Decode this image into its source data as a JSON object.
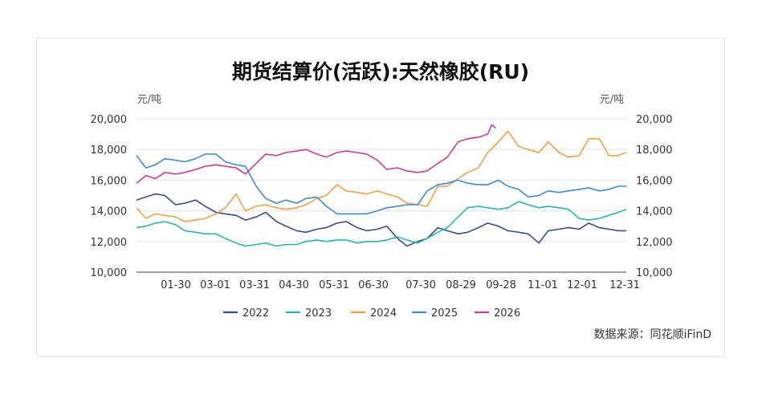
{
  "chart_data": {
    "type": "line",
    "title": "期货结算价(活跃):天然橡胶(RU)",
    "y_unit_left": "元/吨",
    "y_unit_right": "元/吨",
    "ylim": [
      10000,
      20000
    ],
    "yticks": [
      "10,000",
      "12,000",
      "14,000",
      "16,000",
      "18,000",
      "20,000"
    ],
    "xticks": [
      "01-30",
      "03-01",
      "03-31",
      "04-30",
      "05-31",
      "06-30",
      "07-30",
      "08-29",
      "09-28",
      "11-01",
      "12-01",
      "12-31"
    ],
    "grid": true,
    "legend_position": "bottom",
    "series": [
      {
        "name": "2022",
        "color": "#3d4a8f",
        "points": [
          [
            1,
            14700
          ],
          [
            8,
            14900
          ],
          [
            15,
            15100
          ],
          [
            22,
            15000
          ],
          [
            30,
            14400
          ],
          [
            37,
            14500
          ],
          [
            45,
            14700
          ],
          [
            52,
            14300
          ],
          [
            60,
            13900
          ],
          [
            67,
            13800
          ],
          [
            75,
            13700
          ],
          [
            82,
            13400
          ],
          [
            90,
            13600
          ],
          [
            97,
            13900
          ],
          [
            105,
            13300
          ],
          [
            112,
            13000
          ],
          [
            120,
            12700
          ],
          [
            127,
            12600
          ],
          [
            135,
            12800
          ],
          [
            142,
            12900
          ],
          [
            150,
            13200
          ],
          [
            157,
            13300
          ],
          [
            165,
            12900
          ],
          [
            172,
            12700
          ],
          [
            180,
            12800
          ],
          [
            187,
            13000
          ],
          [
            195,
            12200
          ],
          [
            202,
            11700
          ],
          [
            210,
            12000
          ],
          [
            217,
            12200
          ],
          [
            225,
            12900
          ],
          [
            232,
            12700
          ],
          [
            240,
            12500
          ],
          [
            247,
            12600
          ],
          [
            255,
            12900
          ],
          [
            262,
            13200
          ],
          [
            270,
            13000
          ],
          [
            277,
            12700
          ],
          [
            285,
            12600
          ],
          [
            292,
            12500
          ],
          [
            300,
            11900
          ],
          [
            307,
            12700
          ],
          [
            315,
            12800
          ],
          [
            322,
            12900
          ],
          [
            330,
            12800
          ],
          [
            337,
            13200
          ],
          [
            345,
            12900
          ],
          [
            352,
            12800
          ],
          [
            359,
            12700
          ],
          [
            365,
            12700
          ]
        ]
      },
      {
        "name": "2023",
        "color": "#2bb5a8",
        "points": [
          [
            1,
            12900
          ],
          [
            8,
            13000
          ],
          [
            15,
            13200
          ],
          [
            22,
            13300
          ],
          [
            30,
            13100
          ],
          [
            37,
            12700
          ],
          [
            45,
            12600
          ],
          [
            52,
            12500
          ],
          [
            60,
            12500
          ],
          [
            67,
            12200
          ],
          [
            75,
            11900
          ],
          [
            82,
            11700
          ],
          [
            90,
            11800
          ],
          [
            97,
            11900
          ],
          [
            105,
            11700
          ],
          [
            112,
            11800
          ],
          [
            120,
            11800
          ],
          [
            127,
            12000
          ],
          [
            135,
            12100
          ],
          [
            142,
            12000
          ],
          [
            150,
            12100
          ],
          [
            157,
            12100
          ],
          [
            165,
            11900
          ],
          [
            172,
            12000
          ],
          [
            180,
            12000
          ],
          [
            187,
            12100
          ],
          [
            195,
            12300
          ],
          [
            202,
            12100
          ],
          [
            210,
            11900
          ],
          [
            217,
            12200
          ],
          [
            225,
            12600
          ],
          [
            232,
            12900
          ],
          [
            240,
            13600
          ],
          [
            247,
            14200
          ],
          [
            255,
            14300
          ],
          [
            262,
            14200
          ],
          [
            270,
            14100
          ],
          [
            277,
            14200
          ],
          [
            285,
            14600
          ],
          [
            292,
            14400
          ],
          [
            300,
            14200
          ],
          [
            307,
            14300
          ],
          [
            315,
            14200
          ],
          [
            322,
            14100
          ],
          [
            330,
            13500
          ],
          [
            337,
            13400
          ],
          [
            345,
            13500
          ],
          [
            352,
            13700
          ],
          [
            359,
            13900
          ],
          [
            365,
            14100
          ]
        ]
      },
      {
        "name": "2024",
        "color": "#f0a04b",
        "points": [
          [
            1,
            14200
          ],
          [
            8,
            13500
          ],
          [
            15,
            13800
          ],
          [
            22,
            13700
          ],
          [
            30,
            13600
          ],
          [
            37,
            13300
          ],
          [
            45,
            13400
          ],
          [
            52,
            13500
          ],
          [
            60,
            13800
          ],
          [
            67,
            14200
          ],
          [
            75,
            15100
          ],
          [
            82,
            14000
          ],
          [
            90,
            14300
          ],
          [
            97,
            14400
          ],
          [
            105,
            14200
          ],
          [
            112,
            14100
          ],
          [
            120,
            14200
          ],
          [
            127,
            14400
          ],
          [
            135,
            14800
          ],
          [
            142,
            15000
          ],
          [
            150,
            15700
          ],
          [
            157,
            15300
          ],
          [
            165,
            15200
          ],
          [
            172,
            15100
          ],
          [
            180,
            15300
          ],
          [
            187,
            15100
          ],
          [
            195,
            14900
          ],
          [
            202,
            14500
          ],
          [
            210,
            14400
          ],
          [
            217,
            14300
          ],
          [
            225,
            15600
          ],
          [
            232,
            15600
          ],
          [
            240,
            16100
          ],
          [
            247,
            16500
          ],
          [
            255,
            16800
          ],
          [
            262,
            17800
          ],
          [
            270,
            18500
          ],
          [
            277,
            19200
          ],
          [
            285,
            18200
          ],
          [
            292,
            18000
          ],
          [
            300,
            17800
          ],
          [
            307,
            18500
          ],
          [
            315,
            17800
          ],
          [
            322,
            17500
          ],
          [
            330,
            17600
          ],
          [
            337,
            18700
          ],
          [
            345,
            18700
          ],
          [
            352,
            17600
          ],
          [
            359,
            17600
          ],
          [
            365,
            17800
          ]
        ]
      },
      {
        "name": "2025",
        "color": "#4189d0",
        "points": [
          [
            1,
            17600
          ],
          [
            8,
            16800
          ],
          [
            15,
            17000
          ],
          [
            22,
            17400
          ],
          [
            30,
            17300
          ],
          [
            37,
            17200
          ],
          [
            45,
            17400
          ],
          [
            52,
            17700
          ],
          [
            60,
            17700
          ],
          [
            67,
            17200
          ],
          [
            75,
            17000
          ],
          [
            82,
            16900
          ],
          [
            90,
            15600
          ],
          [
            97,
            14800
          ],
          [
            105,
            14500
          ],
          [
            112,
            14700
          ],
          [
            120,
            14500
          ],
          [
            127,
            14800
          ],
          [
            135,
            14900
          ],
          [
            142,
            14300
          ],
          [
            150,
            13800
          ],
          [
            157,
            13800
          ],
          [
            165,
            13800
          ],
          [
            172,
            13800
          ],
          [
            180,
            14000
          ],
          [
            187,
            14200
          ],
          [
            195,
            14300
          ],
          [
            202,
            14400
          ],
          [
            210,
            14400
          ],
          [
            217,
            15300
          ],
          [
            225,
            15700
          ],
          [
            232,
            15800
          ],
          [
            240,
            16000
          ],
          [
            247,
            15800
          ],
          [
            255,
            15700
          ],
          [
            262,
            15700
          ],
          [
            270,
            16000
          ],
          [
            277,
            15600
          ],
          [
            285,
            15400
          ],
          [
            292,
            14900
          ],
          [
            300,
            15000
          ],
          [
            307,
            15300
          ],
          [
            315,
            15200
          ],
          [
            322,
            15300
          ],
          [
            330,
            15400
          ],
          [
            337,
            15500
          ],
          [
            345,
            15300
          ],
          [
            352,
            15400
          ],
          [
            359,
            15600
          ],
          [
            365,
            15600
          ]
        ]
      },
      {
        "name": "2026",
        "color": "#d03c8a",
        "points": [
          [
            1,
            15800
          ],
          [
            8,
            16300
          ],
          [
            15,
            16100
          ],
          [
            22,
            16500
          ],
          [
            30,
            16400
          ],
          [
            37,
            16500
          ],
          [
            45,
            16700
          ],
          [
            52,
            16900
          ],
          [
            60,
            17000
          ],
          [
            67,
            16900
          ],
          [
            75,
            16800
          ],
          [
            82,
            16400
          ],
          [
            90,
            17100
          ],
          [
            97,
            17700
          ],
          [
            105,
            17600
          ],
          [
            112,
            17800
          ],
          [
            120,
            17900
          ],
          [
            127,
            18000
          ],
          [
            135,
            17700
          ],
          [
            142,
            17500
          ],
          [
            150,
            17800
          ],
          [
            157,
            17900
          ],
          [
            165,
            17800
          ],
          [
            172,
            17700
          ],
          [
            180,
            17300
          ],
          [
            187,
            16700
          ],
          [
            195,
            16800
          ],
          [
            202,
            16600
          ],
          [
            210,
            16500
          ],
          [
            217,
            16600
          ],
          [
            225,
            17100
          ],
          [
            232,
            17500
          ],
          [
            240,
            18500
          ],
          [
            247,
            18700
          ],
          [
            255,
            18800
          ],
          [
            262,
            19000
          ],
          [
            265,
            19600
          ],
          [
            268,
            19400
          ]
        ]
      }
    ]
  },
  "source": "数据来源：同花顺iFinD"
}
